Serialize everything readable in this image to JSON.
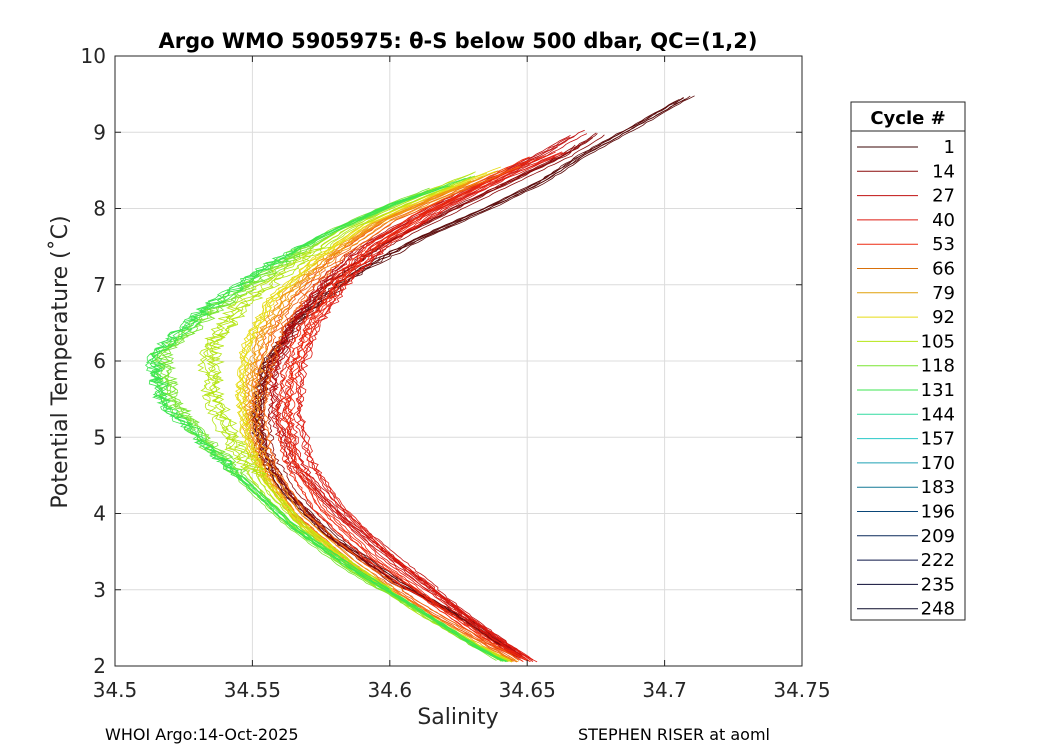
{
  "chart_data": {
    "type": "line",
    "title": "Argo WMO 5905975: θ-S below 500 dbar,  QC=(1,2)",
    "xlabel": "Salinity",
    "ylabel": "Potential Temperature (˚C)",
    "xlim": [
      34.5,
      34.75
    ],
    "ylim": [
      2,
      10
    ],
    "xticks": [
      34.5,
      34.55,
      34.6,
      34.65,
      34.7,
      34.75
    ],
    "xtick_labels": [
      "34.5",
      "34.55",
      "34.6",
      "34.65",
      "34.7",
      "34.75"
    ],
    "yticks": [
      2,
      3,
      4,
      5,
      6,
      7,
      8,
      9,
      10
    ],
    "ytick_labels": [
      "2",
      "3",
      "4",
      "5",
      "6",
      "7",
      "8",
      "9",
      "10"
    ],
    "grid": true,
    "legend_title": "Cycle #",
    "legend_position": "right",
    "series": [
      {
        "name": "1",
        "color": "#5a0a0a",
        "S": [
          34.712,
          34.69,
          34.67,
          34.655,
          34.635,
          34.61,
          34.585,
          34.565,
          34.554,
          34.551,
          34.553,
          34.561,
          34.578,
          34.603,
          34.628,
          34.648
        ],
        "T": [
          9.55,
          9.1,
          8.7,
          8.35,
          8.0,
          7.6,
          7.1,
          6.5,
          5.9,
          5.3,
          4.8,
          4.3,
          3.7,
          3.1,
          2.6,
          2.1
        ]
      },
      {
        "name": "14",
        "color": "#8a0a0a",
        "S": [
          34.68,
          34.665,
          34.645,
          34.625,
          34.6,
          34.58,
          34.566,
          34.557,
          34.554,
          34.556,
          34.564,
          34.58,
          34.603,
          34.628,
          34.648
        ],
        "T": [
          9.05,
          8.7,
          8.35,
          8.0,
          7.55,
          7.05,
          6.5,
          5.9,
          5.3,
          4.8,
          4.3,
          3.7,
          3.1,
          2.6,
          2.1
        ]
      },
      {
        "name": "27",
        "color": "#c01010",
        "S": [
          34.672,
          34.655,
          34.635,
          34.613,
          34.59,
          34.575,
          34.564,
          34.558,
          34.559,
          34.566,
          34.583,
          34.607,
          34.63,
          34.649
        ],
        "T": [
          9.05,
          8.7,
          8.35,
          7.95,
          7.5,
          7.0,
          6.45,
          5.85,
          5.25,
          4.6,
          3.95,
          3.25,
          2.6,
          2.1
        ]
      },
      {
        "name": "40",
        "color": "#dd1a10",
        "S": [
          34.662,
          34.64,
          34.618,
          34.598,
          34.583,
          34.572,
          34.566,
          34.565,
          34.569,
          34.58,
          34.598,
          34.62,
          34.639,
          34.652
        ],
        "T": [
          8.75,
          8.4,
          8.0,
          7.55,
          7.05,
          6.5,
          5.9,
          5.3,
          4.7,
          4.1,
          3.45,
          2.85,
          2.35,
          2.05
        ]
      },
      {
        "name": "53",
        "color": "#ee2a10",
        "S": [
          34.655,
          34.635,
          34.613,
          34.594,
          34.58,
          34.57,
          34.564,
          34.562,
          34.565,
          34.575,
          34.594,
          34.617,
          34.637,
          34.651
        ],
        "T": [
          8.7,
          8.35,
          7.95,
          7.5,
          7.0,
          6.45,
          5.85,
          5.25,
          4.65,
          4.05,
          3.4,
          2.8,
          2.3,
          2.05
        ]
      },
      {
        "name": "66",
        "color": "#f06010",
        "S": [
          34.648,
          34.625,
          34.6,
          34.582,
          34.568,
          34.558,
          34.553,
          34.552,
          34.556,
          34.567,
          34.588,
          34.613,
          34.635,
          34.647
        ],
        "T": [
          8.6,
          8.25,
          7.85,
          7.4,
          6.9,
          6.35,
          5.75,
          5.15,
          4.6,
          4.0,
          3.35,
          2.75,
          2.3,
          2.05
        ]
      },
      {
        "name": "79",
        "color": "#f09a10",
        "S": [
          34.643,
          34.62,
          34.595,
          34.577,
          34.562,
          34.553,
          34.549,
          34.549,
          34.554,
          34.566,
          34.587,
          34.612,
          34.633,
          34.645
        ],
        "T": [
          8.55,
          8.2,
          7.8,
          7.35,
          6.85,
          6.3,
          5.7,
          5.1,
          4.55,
          3.95,
          3.3,
          2.7,
          2.25,
          2.05
        ]
      },
      {
        "name": "92",
        "color": "#e6dc14",
        "S": [
          34.64,
          34.615,
          34.59,
          34.572,
          34.555,
          34.546,
          34.544,
          34.546,
          34.552,
          34.565,
          34.586,
          34.611,
          34.632,
          34.644
        ],
        "T": [
          8.55,
          8.2,
          7.8,
          7.35,
          6.8,
          6.2,
          5.6,
          5.0,
          4.5,
          3.9,
          3.3,
          2.7,
          2.25,
          2.05
        ]
      },
      {
        "name": "105",
        "color": "#b4e614",
        "S": [
          34.635,
          34.61,
          34.585,
          34.566,
          34.546,
          34.534,
          34.536,
          34.544,
          34.555,
          34.568,
          34.588,
          34.611,
          34.632,
          34.643
        ],
        "T": [
          8.5,
          8.15,
          7.75,
          7.3,
          6.75,
          6.15,
          5.5,
          4.85,
          4.3,
          3.8,
          3.25,
          2.7,
          2.25,
          2.05
        ]
      },
      {
        "name": "118",
        "color": "#7ae632",
        "S": [
          34.632,
          34.605,
          34.58,
          34.56,
          34.538,
          34.518,
          34.521,
          34.535,
          34.549,
          34.563,
          34.585,
          34.61,
          34.63,
          34.642
        ],
        "T": [
          8.45,
          8.1,
          7.7,
          7.25,
          6.7,
          6.1,
          5.5,
          4.9,
          4.4,
          3.9,
          3.3,
          2.75,
          2.3,
          2.05
        ]
      },
      {
        "name": "131",
        "color": "#3ce650",
        "S": [
          34.628,
          34.6,
          34.575,
          34.553,
          34.531,
          34.513,
          34.517,
          34.534,
          34.55,
          34.565,
          34.587,
          34.612,
          34.631,
          34.642
        ],
        "T": [
          8.4,
          8.05,
          7.65,
          7.2,
          6.65,
          6.05,
          5.45,
          4.85,
          4.3,
          3.8,
          3.25,
          2.7,
          2.25,
          2.05
        ]
      }
    ],
    "legend_entries": [
      {
        "label": "1",
        "color": "#3a0505"
      },
      {
        "label": "14",
        "color": "#8a0a0a"
      },
      {
        "label": "27",
        "color": "#c01010"
      },
      {
        "label": "40",
        "color": "#dd1a10"
      },
      {
        "label": "53",
        "color": "#ee2a10"
      },
      {
        "label": "66",
        "color": "#d8700a"
      },
      {
        "label": "79",
        "color": "#e0a00a"
      },
      {
        "label": "92",
        "color": "#e6dc14"
      },
      {
        "label": "105",
        "color": "#b4e614"
      },
      {
        "label": "118",
        "color": "#7ae632"
      },
      {
        "label": "131",
        "color": "#3ce650"
      },
      {
        "label": "144",
        "color": "#32dca0"
      },
      {
        "label": "157",
        "color": "#28c8c8"
      },
      {
        "label": "170",
        "color": "#1ea0b4"
      },
      {
        "label": "183",
        "color": "#147896"
      },
      {
        "label": "196",
        "color": "#0a4678"
      },
      {
        "label": "209",
        "color": "#0a285a"
      },
      {
        "label": "222",
        "color": "#0a1446"
      },
      {
        "label": "235",
        "color": "#0a0a32"
      },
      {
        "label": "248",
        "color": "#0a0a28"
      }
    ]
  },
  "footer": {
    "left": "WHOI Argo:14-Oct-2025",
    "right": "STEPHEN RISER at aoml"
  }
}
